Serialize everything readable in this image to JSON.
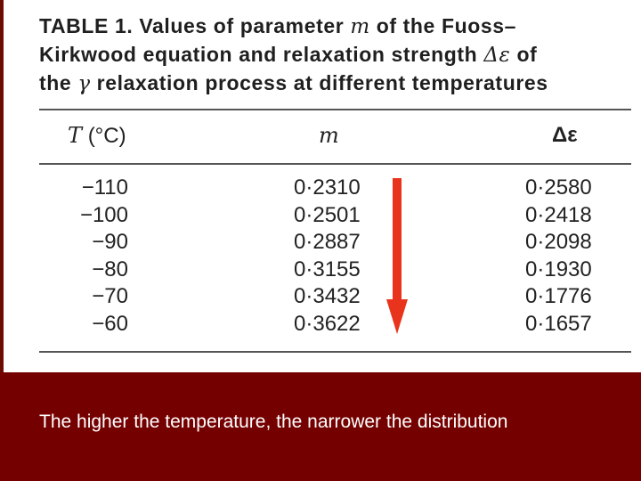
{
  "caption": {
    "line1": "TABLE 1. Values of parameter",
    "line1_symbol": "m",
    "line1_rest": "of the Fuoss–",
    "line2": "Kirkwood equation and relaxation strength",
    "line2_symbol": "Δε",
    "line2_rest": "of",
    "line3_pre": "the",
    "line3_symbol": "γ",
    "line3_rest": "relaxation process at different temperatures"
  },
  "table": {
    "headers": {
      "temp_symbol": "T",
      "temp_unit": "(°C)",
      "m": "m",
      "delta_eps": "Δε"
    },
    "rows": [
      {
        "T": "−110",
        "m": "0·2310",
        "delta_eps": "0·2580"
      },
      {
        "T": "−100",
        "m": "0·2501",
        "delta_eps": "0·2418"
      },
      {
        "T": "−90",
        "m": "0·2887",
        "delta_eps": "0·2098"
      },
      {
        "T": "−80",
        "m": "0·3155",
        "delta_eps": "0·1930"
      },
      {
        "T": "−70",
        "m": "0·3432",
        "delta_eps": "0·1776"
      },
      {
        "T": "−60",
        "m": "0·3622",
        "delta_eps": "0·1657"
      }
    ]
  },
  "annotation": {
    "arrow_icon": "down-arrow-icon",
    "arrow_color": "#e8341c"
  },
  "banner": {
    "text": "The higher the temperature, the narrower the distribution",
    "background": "#750000"
  }
}
